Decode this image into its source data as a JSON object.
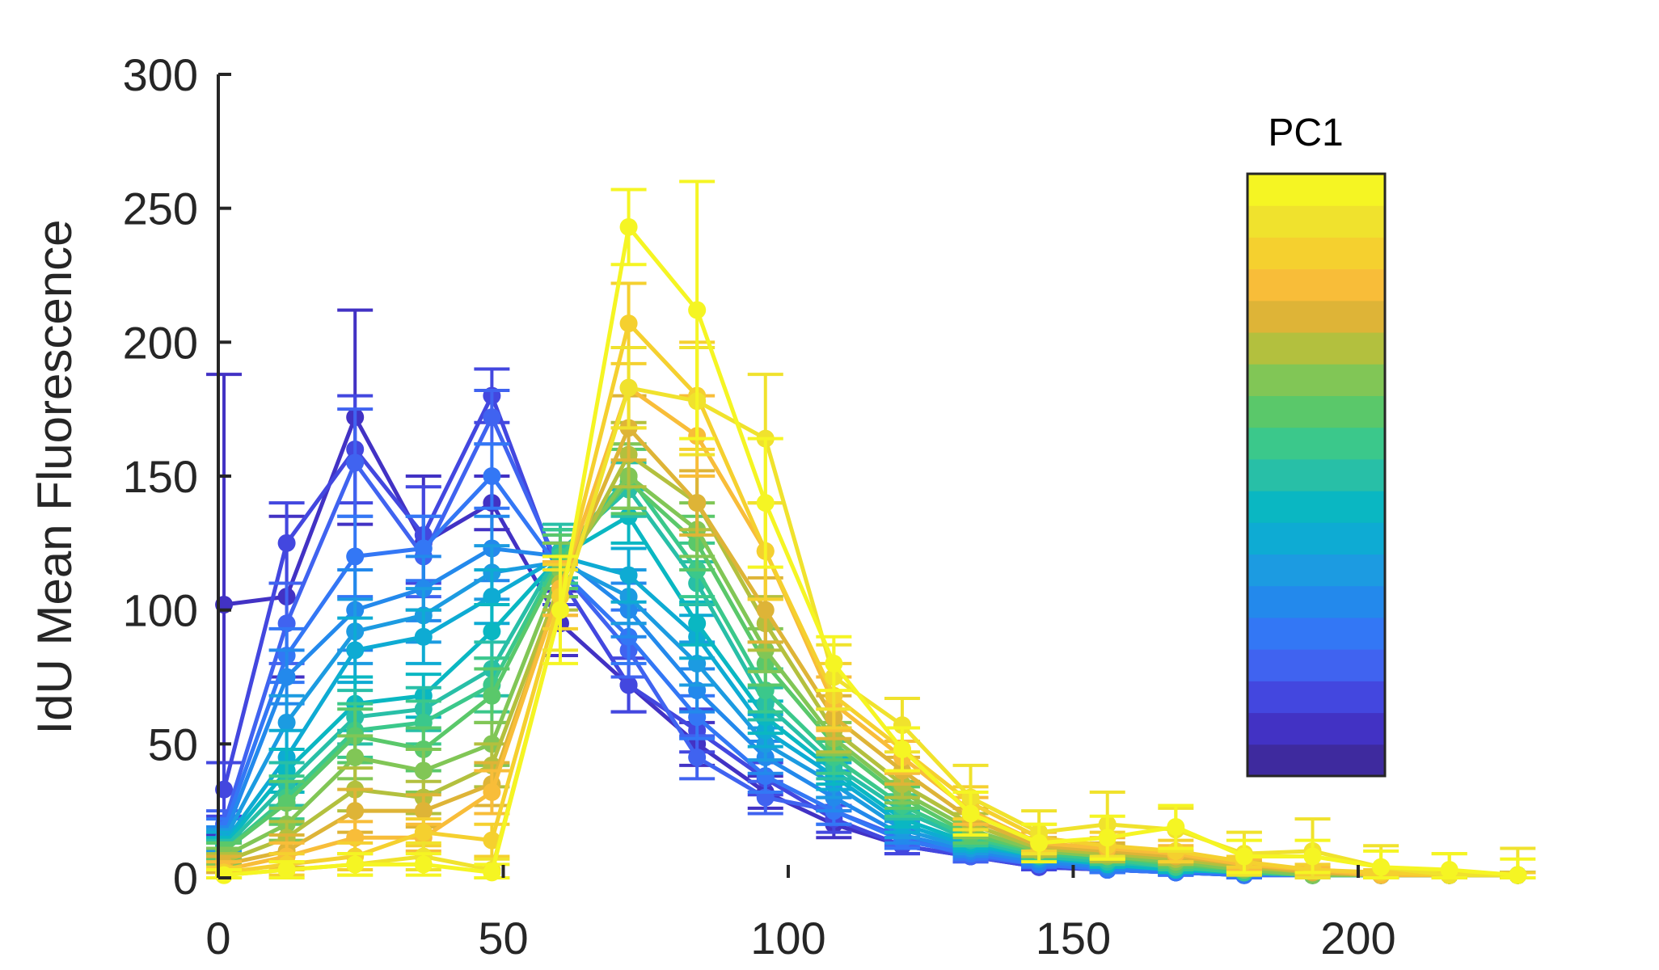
{
  "chart_data": {
    "type": "line",
    "title": "",
    "xlabel": "",
    "ylabel": "IdU Mean Fluorescence",
    "xlim": [
      0,
      230
    ],
    "ylim": [
      0,
      300
    ],
    "x_ticks": [
      "0",
      "50",
      "100",
      "150",
      "200"
    ],
    "y_ticks": [
      "0",
      "50",
      "100",
      "150",
      "200",
      "250",
      "300"
    ],
    "grid": false,
    "colorbar": {
      "title": "PC1",
      "colors": [
        "#3e2a9e",
        "#4232c4",
        "#4347df",
        "#4063f0",
        "#3377f5",
        "#2389ec",
        "#1c9be1",
        "#0eabd3",
        "#0ab7c2",
        "#28bfa7",
        "#3bc88b",
        "#5ac86a",
        "#81c656",
        "#b3c03e",
        "#deb437",
        "#f8bd39",
        "#f5d02f",
        "#f0e22d",
        "#f5f523"
      ]
    },
    "x": [
      1,
      12,
      24,
      36,
      48,
      60,
      72,
      84,
      96,
      108,
      120,
      132,
      144,
      156,
      168,
      180,
      192,
      204,
      216,
      228
    ],
    "series": [
      {
        "color": "#4232c4",
        "values": [
          102,
          105,
          172,
          125,
          140,
          95,
          72,
          50,
          32,
          20,
          12,
          8,
          4,
          3,
          2,
          1,
          1,
          1,
          1,
          1
        ],
        "errors": [
          86,
          30,
          40,
          25,
          10,
          12,
          10,
          8,
          6,
          5,
          3,
          2,
          1,
          1,
          1,
          1,
          1,
          1,
          1,
          1
        ]
      },
      {
        "color": "#4347df",
        "values": [
          33,
          125,
          160,
          128,
          180,
          112,
          72,
          55,
          37,
          22,
          12,
          8,
          4,
          3,
          2,
          1,
          1,
          1,
          1,
          1
        ],
        "errors": [
          10,
          15,
          20,
          18,
          10,
          10,
          10,
          8,
          6,
          5,
          3,
          2,
          1,
          1,
          1,
          1,
          1,
          1,
          1,
          1
        ]
      },
      {
        "color": "#4063f0",
        "values": [
          20,
          95,
          155,
          120,
          172,
          115,
          85,
          45,
          30,
          25,
          15,
          8,
          5,
          3,
          2,
          1,
          1,
          1,
          1,
          1
        ],
        "errors": [
          5,
          15,
          20,
          15,
          10,
          10,
          10,
          8,
          6,
          5,
          3,
          2,
          1,
          1,
          1,
          1,
          1,
          1,
          1,
          1
        ]
      },
      {
        "color": "#3377f5",
        "values": [
          18,
          83,
          120,
          123,
          150,
          115,
          90,
          60,
          38,
          25,
          14,
          9,
          5,
          3,
          2,
          1,
          1,
          1,
          1,
          1
        ],
        "errors": [
          4,
          10,
          15,
          12,
          12,
          10,
          10,
          8,
          6,
          5,
          3,
          2,
          1,
          1,
          1,
          1,
          1,
          1,
          1,
          1
        ]
      },
      {
        "color": "#2389ec",
        "values": [
          15,
          75,
          100,
          108,
          123,
          120,
          100,
          70,
          45,
          30,
          16,
          10,
          6,
          4,
          3,
          2,
          1,
          1,
          1,
          1
        ],
        "errors": [
          4,
          10,
          15,
          12,
          12,
          10,
          10,
          8,
          6,
          5,
          3,
          2,
          1,
          1,
          1,
          1,
          1,
          1,
          1,
          1
        ]
      },
      {
        "color": "#1c9be1",
        "values": [
          14,
          58,
          92,
          98,
          114,
          118,
          105,
          80,
          50,
          35,
          18,
          11,
          7,
          5,
          3,
          2,
          1,
          1,
          1,
          1
        ],
        "errors": [
          4,
          10,
          12,
          10,
          10,
          10,
          10,
          8,
          6,
          5,
          3,
          2,
          1,
          1,
          1,
          1,
          1,
          1,
          1,
          1
        ]
      },
      {
        "color": "#0eabd3",
        "values": [
          13,
          45,
          85,
          90,
          105,
          120,
          113,
          90,
          55,
          38,
          20,
          12,
          8,
          5,
          3,
          2,
          1,
          1,
          1,
          1
        ],
        "errors": [
          4,
          10,
          12,
          10,
          10,
          10,
          10,
          8,
          6,
          5,
          3,
          2,
          1,
          1,
          1,
          1,
          1,
          1,
          1,
          1
        ]
      },
      {
        "color": "#0ab7c2",
        "values": [
          12,
          40,
          65,
          68,
          92,
          120,
          135,
          95,
          60,
          40,
          22,
          13,
          8,
          5,
          3,
          2,
          1,
          1,
          1,
          1
        ],
        "errors": [
          3,
          8,
          10,
          8,
          10,
          10,
          10,
          8,
          6,
          5,
          3,
          2,
          1,
          1,
          1,
          1,
          1,
          1,
          1,
          1
        ]
      },
      {
        "color": "#28bfa7",
        "values": [
          11,
          35,
          60,
          63,
          78,
          122,
          145,
          110,
          65,
          42,
          25,
          14,
          8,
          6,
          4,
          2,
          1,
          1,
          1,
          1
        ],
        "errors": [
          3,
          8,
          10,
          8,
          10,
          10,
          10,
          8,
          6,
          5,
          3,
          2,
          1,
          1,
          1,
          1,
          1,
          1,
          1,
          1
        ]
      },
      {
        "color": "#3bc88b",
        "values": [
          10,
          30,
          55,
          58,
          72,
          120,
          150,
          115,
          70,
          45,
          27,
          15,
          9,
          7,
          4,
          2,
          1,
          1,
          1,
          1
        ],
        "errors": [
          3,
          8,
          10,
          8,
          10,
          10,
          12,
          10,
          8,
          6,
          4,
          3,
          2,
          2,
          1,
          1,
          1,
          1,
          1,
          1
        ]
      },
      {
        "color": "#5ac86a",
        "values": [
          10,
          28,
          53,
          48,
          68,
          118,
          148,
          125,
          80,
          50,
          30,
          16,
          10,
          8,
          5,
          3,
          1,
          1,
          1,
          1
        ],
        "errors": [
          3,
          8,
          10,
          8,
          10,
          10,
          12,
          10,
          8,
          6,
          4,
          3,
          2,
          2,
          1,
          1,
          1,
          1,
          1,
          1
        ]
      },
      {
        "color": "#81c656",
        "values": [
          8,
          20,
          45,
          40,
          50,
          115,
          150,
          130,
          85,
          52,
          32,
          18,
          10,
          8,
          6,
          3,
          1,
          1,
          1,
          1
        ],
        "errors": [
          3,
          6,
          8,
          8,
          8,
          10,
          12,
          10,
          8,
          6,
          4,
          3,
          2,
          2,
          1,
          1,
          1,
          1,
          1,
          1
        ]
      },
      {
        "color": "#b3c03e",
        "values": [
          6,
          15,
          33,
          30,
          42,
          110,
          158,
          140,
          95,
          55,
          35,
          20,
          11,
          9,
          7,
          4,
          2,
          1,
          1,
          1
        ],
        "errors": [
          3,
          6,
          8,
          6,
          8,
          10,
          12,
          10,
          10,
          8,
          5,
          4,
          3,
          3,
          2,
          1,
          1,
          1,
          1,
          1
        ]
      },
      {
        "color": "#deb437",
        "values": [
          5,
          10,
          25,
          25,
          35,
          108,
          168,
          140,
          100,
          60,
          40,
          22,
          12,
          10,
          8,
          5,
          2,
          1,
          1,
          1
        ],
        "errors": [
          3,
          6,
          8,
          6,
          8,
          10,
          12,
          12,
          12,
          8,
          5,
          4,
          3,
          3,
          2,
          1,
          1,
          1,
          1,
          1
        ]
      },
      {
        "color": "#f8bd39",
        "values": [
          3,
          8,
          15,
          15,
          32,
          108,
          183,
          165,
          122,
          65,
          45,
          25,
          13,
          11,
          9,
          5,
          3,
          1,
          1,
          1
        ],
        "errors": [
          3,
          5,
          6,
          5,
          8,
          10,
          15,
          15,
          18,
          10,
          6,
          5,
          4,
          4,
          3,
          2,
          1,
          1,
          1,
          1
        ]
      },
      {
        "color": "#f5d02f",
        "values": [
          2,
          5,
          8,
          17,
          14,
          105,
          207,
          180,
          122,
          68,
          48,
          28,
          15,
          12,
          10,
          6,
          3,
          2,
          1,
          1
        ],
        "errors": [
          2,
          4,
          5,
          5,
          6,
          12,
          15,
          20,
          18,
          12,
          8,
          6,
          5,
          5,
          4,
          2,
          2,
          1,
          1,
          1
        ]
      },
      {
        "color": "#f0e22d",
        "values": [
          1,
          3,
          5,
          8,
          3,
          100,
          183,
          178,
          164,
          75,
          57,
          30,
          17,
          20,
          18,
          9,
          10,
          4,
          1,
          1
        ],
        "errors": [
          2,
          3,
          4,
          5,
          4,
          15,
          15,
          20,
          24,
          12,
          10,
          12,
          8,
          12,
          8,
          8,
          12,
          8,
          8,
          10
        ]
      },
      {
        "color": "#f5f523",
        "values": [
          1,
          3,
          5,
          5,
          2,
          100,
          243,
          212,
          140,
          80,
          48,
          24,
          13,
          15,
          19,
          8,
          8,
          4,
          3,
          1
        ],
        "errors": [
          2,
          3,
          4,
          4,
          3,
          20,
          14,
          48,
          24,
          10,
          8,
          8,
          7,
          8,
          8,
          6,
          6,
          6,
          6,
          6
        ]
      }
    ]
  }
}
